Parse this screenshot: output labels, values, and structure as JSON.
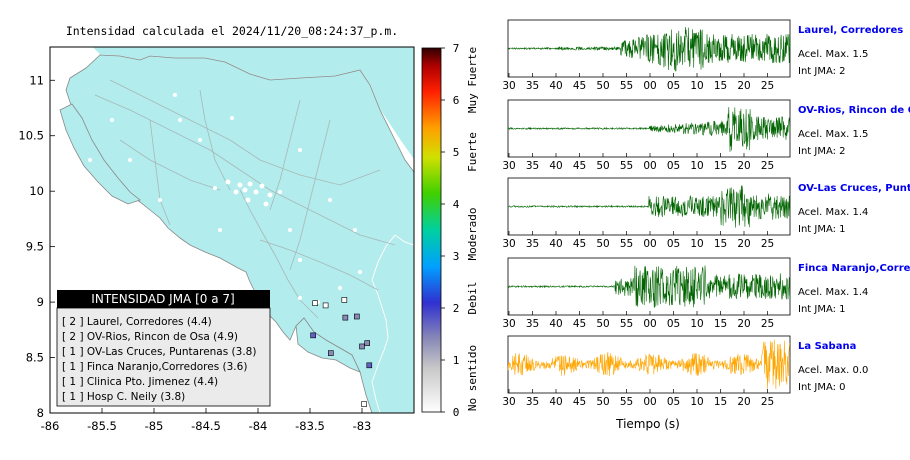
{
  "map": {
    "title": "Intensidad calculada el 2024/11/20_08:24:37_p.m.",
    "x_ticks": [
      "-86",
      "-85.5",
      "-85",
      "-84.5",
      "-84",
      "-83.5",
      "-83"
    ],
    "y_ticks": [
      "11",
      "10.5",
      "10",
      "9.5",
      "9",
      "8.5",
      "8"
    ],
    "land_color": "#b2ecec",
    "ocean_color": "#ffffff"
  },
  "colorbar": {
    "ticks": [
      "0",
      "1",
      "2",
      "3",
      "4",
      "5",
      "6",
      "7"
    ],
    "category_labels": [
      "No sentido",
      "Debil",
      "Moderado",
      "Fuerte",
      "Muy Fuerte"
    ]
  },
  "legend": {
    "title": "INTENSIDAD JMA [0 a 7]",
    "items": [
      "[ 2 ] Laurel, Corredores (4.4)",
      "[ 2 ] OV-Rios, Rincon de Osa (4.9)",
      "[ 1 ] OV-Las Cruces, Puntarenas (3.8)",
      "[ 1 ] Finca Naranjo,Corredores (3.6)",
      "[ 1 ] Clinica Pto. Jimenez (4.4)",
      "[ 1 ] Hosp C. Neily (3.8)"
    ]
  },
  "waveforms": {
    "xlabel": "Tiempo (s)",
    "x_ticks": [
      "30",
      "35",
      "40",
      "45",
      "50",
      "55",
      "00",
      "05",
      "10",
      "15",
      "20",
      "25"
    ],
    "traces": [
      {
        "name": "Laurel, Corredores",
        "accel": "Acel. Max. 1.5",
        "int": "Int JMA: 2",
        "color": "#006400",
        "show_ticks": true
      },
      {
        "name": "OV-Rios, Rincon de Os",
        "accel": "Acel. Max. 1.5",
        "int": "Int JMA: 2",
        "color": "#006400",
        "show_ticks": true
      },
      {
        "name": "OV-Las Cruces, Puntar",
        "accel": "Acel. Max. 1.4",
        "int": "Int JMA: 1",
        "color": "#006400",
        "show_ticks": true
      },
      {
        "name": "Finca Naranjo,Corredor",
        "accel": "Acel. Max. 1.4",
        "int": "Int JMA: 1",
        "color": "#006400",
        "show_ticks": true
      },
      {
        "name": "La Sabana",
        "accel": "Acel. Max. 0.0",
        "int": "Int JMA: 0",
        "color": "#ffa500",
        "show_ticks": true
      }
    ]
  },
  "chart_data": [
    {
      "type": "scatter",
      "title": "Intensidad calculada el 2024/11/20_08:24:37_p.m.",
      "xlabel": "",
      "ylabel": "",
      "xlim": [
        -86,
        -82.5
      ],
      "ylim": [
        8,
        11.3
      ],
      "series": [
        {
          "name": "Laurel, Corredores",
          "x": [
            -82.93
          ],
          "y": [
            8.43
          ],
          "intensity": 2,
          "value": 4.4
        },
        {
          "name": "OV-Rios, Rincon de Osa",
          "x": [
            -83.47
          ],
          "y": [
            8.7
          ],
          "intensity": 2,
          "value": 4.9
        },
        {
          "name": "OV-Las Cruces, Puntarenas",
          "x": [
            -83.05
          ],
          "y": [
            8.87
          ],
          "intensity": 1,
          "value": 3.8
        },
        {
          "name": "Finca Naranjo,Corredores",
          "x": [
            -83.0
          ],
          "y": [
            8.6
          ],
          "intensity": 1,
          "value": 3.6
        },
        {
          "name": "Clinica Pto. Jimenez",
          "x": [
            -83.3
          ],
          "y": [
            8.54
          ],
          "intensity": 1,
          "value": 4.4
        },
        {
          "name": "Hosp C. Neily",
          "x": [
            -82.95
          ],
          "y": [
            8.63
          ],
          "intensity": 1,
          "value": 3.8
        }
      ],
      "colorbar_range": [
        0,
        7
      ]
    }
  ]
}
